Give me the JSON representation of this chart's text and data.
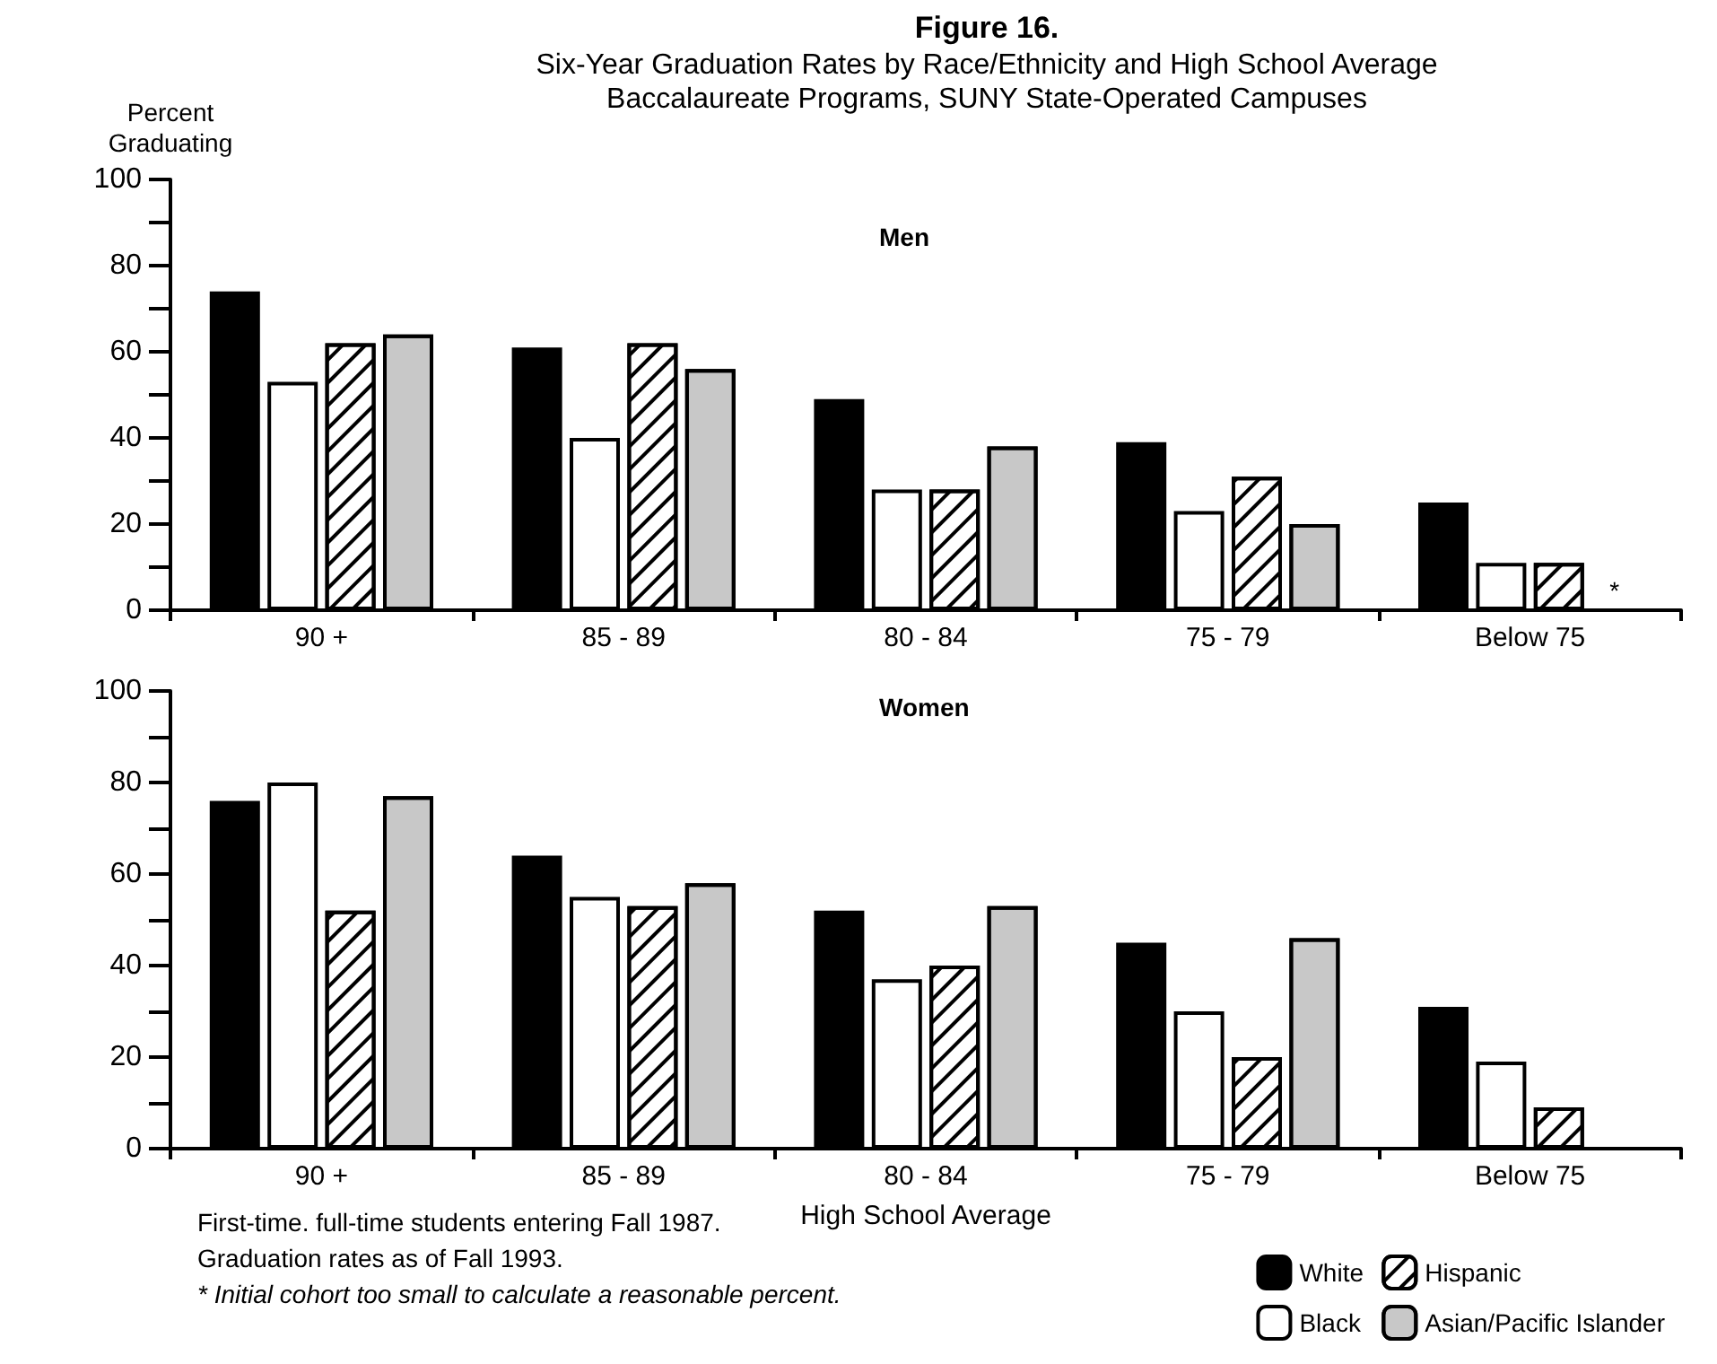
{
  "chart_data": [
    {
      "type": "bar",
      "title": "Figure 16.",
      "subtitle": "Six-Year Graduation Rates by Race/Ethnicity and High School Average\nBaccalaureate Programs, SUNY State-Operated Campuses",
      "ylabel": "Percent\nGraduating",
      "annotations": [
        "Men",
        "*"
      ],
      "categories": [
        "90 +",
        "85 - 89",
        "80 - 84",
        "75 - 79",
        "Below 75"
      ],
      "series": [
        {
          "color": "#000000",
          "values": [
            74,
            61,
            49,
            39,
            25
          ]
        },
        {
          "color": "#ffffff",
          "values": [
            53,
            40,
            28,
            23,
            11
          ]
        },
        {
          "color": "#ffffff",
          "values": [
            62,
            62,
            28,
            31,
            11
          ]
        },
        {
          "color": "#c8c8c8",
          "values": [
            64,
            56,
            38,
            20,
            null
          ]
        }
      ],
      "ylim": [
        0,
        100
      ],
      "yticks": [
        0,
        {
          "value": 10,
          "label": null
        },
        20,
        {
          "value": 30,
          "label": null
        },
        40,
        {
          "value": 50,
          "label": null
        },
        60,
        {
          "value": 70,
          "label": null
        },
        80,
        {
          "value": 90,
          "label": null
        },
        100
      ],
      "grid": false,
      "legend": false
    },
    {
      "type": "bar",
      "xlabel": "High School Average",
      "annotations": [
        "Women",
        "First-time. full-time students entering Fall 1987.",
        "Graduation rates as of Fall 1993.",
        "* Initial cohort too small to calculate a reasonable percent."
      ],
      "categories": [
        "90 +",
        "85 - 89",
        "80 - 84",
        "75 - 79",
        "Below 75"
      ],
      "series": [
        {
          "name": "White",
          "color": "#000000",
          "values": [
            76,
            64,
            52,
            45,
            31
          ]
        },
        {
          "name": "Black",
          "color": "#ffffff",
          "values": [
            80,
            55,
            37,
            30,
            19
          ]
        },
        {
          "name": "Hispanic",
          "color": "#ffffff",
          "values": [
            52,
            53,
            40,
            20,
            9
          ]
        },
        {
          "name": "Asian/Pacific Islander",
          "color": "#c8c8c8",
          "values": [
            77,
            58,
            53,
            46,
            null
          ]
        }
      ],
      "ylim": [
        0,
        100
      ],
      "yticks": [
        0,
        {
          "value": 10,
          "label": null
        },
        20,
        {
          "value": 30,
          "label": null
        },
        40,
        {
          "value": 50,
          "label": null
        },
        60,
        {
          "value": 70,
          "label": null
        },
        80,
        {
          "value": 90,
          "label": null
        },
        100
      ],
      "grid": false,
      "legend": "bottom right"
    }
  ]
}
